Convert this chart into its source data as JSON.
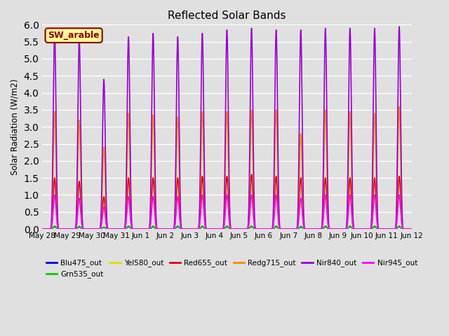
{
  "title": "Reflected Solar Bands",
  "ylabel": "Solar Radiation (W/m2)",
  "background_color": "#e0e0e0",
  "ylim": [
    0.0,
    6.0
  ],
  "yticks": [
    0.0,
    0.5,
    1.0,
    1.5,
    2.0,
    2.5,
    3.0,
    3.5,
    4.0,
    4.5,
    5.0,
    5.5,
    6.0
  ],
  "annotation_text": "SW_arable",
  "annotation_color": "#8B0000",
  "annotation_bg": "#ffff99",
  "annotation_border": "#8B0000",
  "series": [
    {
      "name": "Blu475_out",
      "color": "#0000dd",
      "linewidth": 1.2
    },
    {
      "name": "Grn535_out",
      "color": "#00cc00",
      "linewidth": 1.2
    },
    {
      "name": "Yel580_out",
      "color": "#dddd00",
      "linewidth": 1.2
    },
    {
      "name": "Red655_out",
      "color": "#dd0000",
      "linewidth": 1.2
    },
    {
      "name": "Redg715_out",
      "color": "#ff8800",
      "linewidth": 1.2
    },
    {
      "name": "Nir840_out",
      "color": "#9900cc",
      "linewidth": 1.2
    },
    {
      "name": "Nir945_out",
      "color": "#ff00ff",
      "linewidth": 1.2
    }
  ],
  "num_days": 15,
  "x_tick_labels": [
    "May 28",
    "May 29",
    "May 30",
    "May 31",
    "Jun 1",
    "Jun 2",
    "Jun 3",
    "Jun 4",
    "Jun 5",
    "Jun 6",
    "Jun 7",
    "Jun 8",
    "Jun 9",
    "Jun 10",
    "Jun 11",
    "Jun 12"
  ],
  "peaks_nir840": [
    5.75,
    5.55,
    4.4,
    5.65,
    5.75,
    5.65,
    5.75,
    5.85,
    5.9,
    5.85,
    5.85,
    5.9,
    5.9,
    5.9,
    5.95
  ],
  "peaks_redg715": [
    3.45,
    3.2,
    2.4,
    3.4,
    3.35,
    3.3,
    3.45,
    3.45,
    3.5,
    3.5,
    2.8,
    3.5,
    3.45,
    3.4,
    3.6
  ],
  "peaks_red655": [
    1.5,
    1.4,
    0.95,
    1.5,
    1.5,
    1.5,
    1.55,
    1.55,
    1.6,
    1.55,
    1.5,
    1.5,
    1.5,
    1.5,
    1.55
  ],
  "peaks_nir945": [
    1.0,
    0.9,
    0.65,
    0.95,
    0.95,
    0.95,
    1.0,
    1.0,
    1.0,
    1.0,
    0.9,
    1.0,
    1.0,
    1.0,
    1.0
  ],
  "peaks_yel580": [
    0.93,
    0.88,
    0.6,
    0.92,
    0.92,
    0.92,
    0.95,
    0.95,
    0.95,
    0.95,
    0.85,
    0.95,
    0.95,
    0.92,
    0.95
  ],
  "peaks_grn535": [
    0.09,
    0.08,
    0.06,
    0.09,
    0.09,
    0.09,
    0.09,
    0.09,
    0.09,
    0.09,
    0.08,
    0.09,
    0.09,
    0.09,
    0.09
  ],
  "peaks_blu475": [
    0.07,
    0.06,
    0.05,
    0.07,
    0.07,
    0.07,
    0.07,
    0.07,
    0.07,
    0.07,
    0.06,
    0.07,
    0.07,
    0.07,
    0.07
  ]
}
